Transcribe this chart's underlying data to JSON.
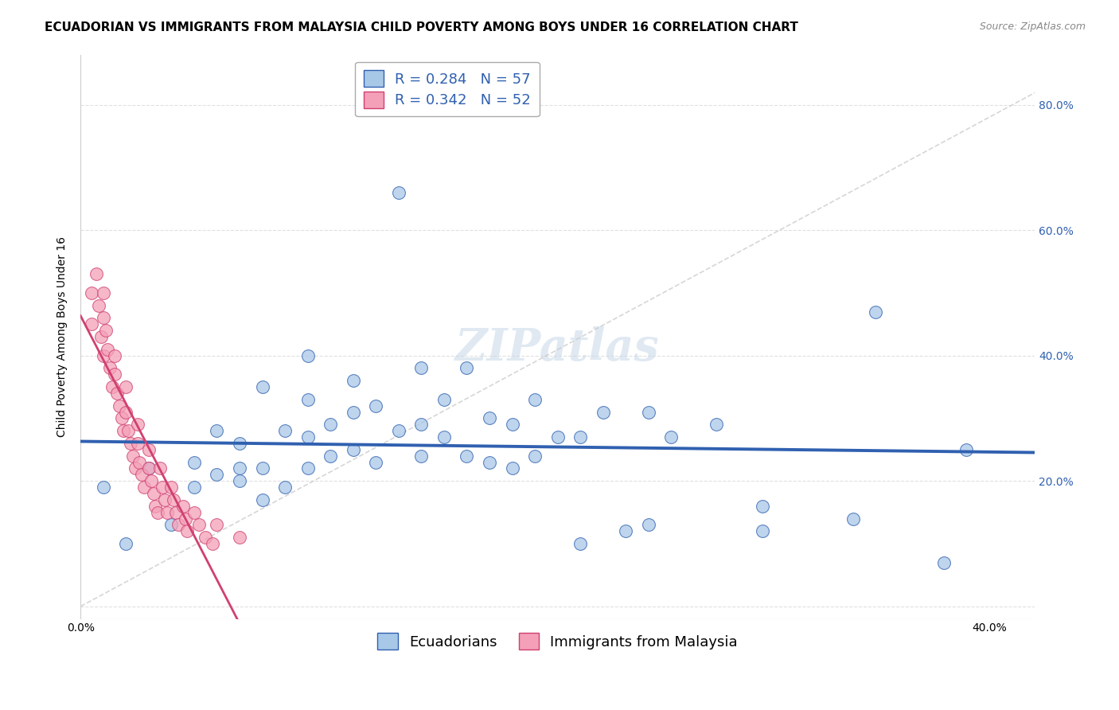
{
  "title": "ECUADORIAN VS IMMIGRANTS FROM MALAYSIA CHILD POVERTY AMONG BOYS UNDER 16 CORRELATION CHART",
  "source": "Source: ZipAtlas.com",
  "ylabel": "Child Poverty Among Boys Under 16",
  "xlim": [
    0.0,
    0.42
  ],
  "ylim": [
    -0.02,
    0.88
  ],
  "r_blue": 0.284,
  "n_blue": 57,
  "r_pink": 0.342,
  "n_pink": 52,
  "legend_label_blue": "Ecuadorians",
  "legend_label_pink": "Immigrants from Malaysia",
  "blue_color": "#a8c8e8",
  "pink_color": "#f4a0b8",
  "trendline_blue": "#3060b0",
  "trendline_pink": "#d04070",
  "trendline_dashed_color": "#cccccc",
  "watermark": "ZIPatlas",
  "blue_scatter_x": [
    0.01,
    0.02,
    0.03,
    0.04,
    0.05,
    0.05,
    0.06,
    0.06,
    0.07,
    0.07,
    0.07,
    0.08,
    0.08,
    0.08,
    0.09,
    0.09,
    0.1,
    0.1,
    0.1,
    0.1,
    0.11,
    0.11,
    0.12,
    0.12,
    0.12,
    0.13,
    0.13,
    0.14,
    0.14,
    0.15,
    0.15,
    0.15,
    0.16,
    0.16,
    0.17,
    0.17,
    0.18,
    0.18,
    0.19,
    0.19,
    0.2,
    0.2,
    0.21,
    0.22,
    0.22,
    0.23,
    0.24,
    0.25,
    0.25,
    0.26,
    0.28,
    0.3,
    0.3,
    0.34,
    0.35,
    0.38,
    0.39
  ],
  "blue_scatter_y": [
    0.19,
    0.1,
    0.22,
    0.13,
    0.19,
    0.23,
    0.21,
    0.28,
    0.2,
    0.22,
    0.26,
    0.17,
    0.22,
    0.35,
    0.19,
    0.28,
    0.22,
    0.27,
    0.33,
    0.4,
    0.24,
    0.29,
    0.25,
    0.31,
    0.36,
    0.23,
    0.32,
    0.28,
    0.66,
    0.24,
    0.29,
    0.38,
    0.27,
    0.33,
    0.24,
    0.38,
    0.23,
    0.3,
    0.22,
    0.29,
    0.24,
    0.33,
    0.27,
    0.1,
    0.27,
    0.31,
    0.12,
    0.13,
    0.31,
    0.27,
    0.29,
    0.12,
    0.16,
    0.14,
    0.47,
    0.07,
    0.25
  ],
  "pink_scatter_x": [
    0.005,
    0.005,
    0.007,
    0.008,
    0.009,
    0.01,
    0.01,
    0.01,
    0.011,
    0.012,
    0.013,
    0.014,
    0.015,
    0.015,
    0.016,
    0.017,
    0.018,
    0.019,
    0.02,
    0.02,
    0.021,
    0.022,
    0.023,
    0.024,
    0.025,
    0.025,
    0.026,
    0.027,
    0.028,
    0.03,
    0.03,
    0.031,
    0.032,
    0.033,
    0.034,
    0.035,
    0.036,
    0.037,
    0.038,
    0.04,
    0.041,
    0.042,
    0.043,
    0.045,
    0.046,
    0.047,
    0.05,
    0.052,
    0.055,
    0.058,
    0.06,
    0.07
  ],
  "pink_scatter_y": [
    0.5,
    0.45,
    0.53,
    0.48,
    0.43,
    0.5,
    0.46,
    0.4,
    0.44,
    0.41,
    0.38,
    0.35,
    0.4,
    0.37,
    0.34,
    0.32,
    0.3,
    0.28,
    0.35,
    0.31,
    0.28,
    0.26,
    0.24,
    0.22,
    0.29,
    0.26,
    0.23,
    0.21,
    0.19,
    0.25,
    0.22,
    0.2,
    0.18,
    0.16,
    0.15,
    0.22,
    0.19,
    0.17,
    0.15,
    0.19,
    0.17,
    0.15,
    0.13,
    0.16,
    0.14,
    0.12,
    0.15,
    0.13,
    0.11,
    0.1,
    0.13,
    0.11
  ],
  "title_fontsize": 11,
  "axis_label_fontsize": 10,
  "tick_fontsize": 10,
  "legend_fontsize": 13,
  "watermark_fontsize": 40,
  "watermark_color": "#c8d8e8",
  "watermark_alpha": 0.55
}
